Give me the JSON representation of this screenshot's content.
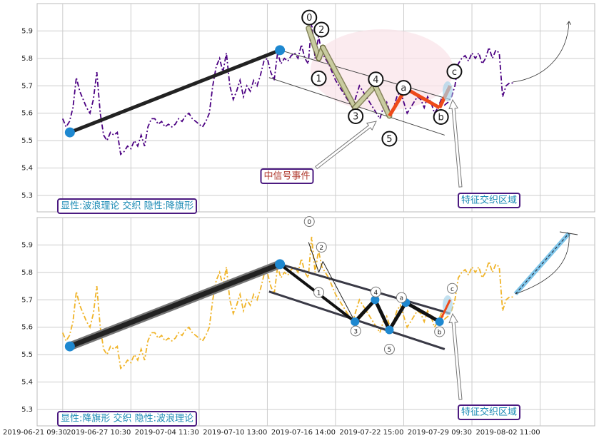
{
  "chart_data": [
    {
      "type": "line",
      "ylim": [
        5.24,
        6.0
      ],
      "yticks": [
        5.3,
        5.4,
        5.5,
        5.6,
        5.7,
        5.8,
        5.9
      ],
      "xlim": [
        -7.5,
        156
      ],
      "xticks": [
        0,
        20,
        40,
        60,
        80,
        100,
        120,
        140
      ],
      "xtick_labels": false,
      "grid": true,
      "series": [
        {
          "color": "#4b0082",
          "values": [
            5.58,
            5.55,
            5.57,
            5.62,
            5.73,
            5.68,
            5.65,
            5.62,
            5.6,
            5.65,
            5.75,
            5.6,
            5.52,
            5.5,
            5.53,
            5.52,
            5.53,
            5.45,
            5.46,
            5.48,
            5.47,
            5.5,
            5.48,
            5.52,
            5.48,
            5.55,
            5.58,
            5.58,
            5.56,
            5.57,
            5.55,
            5.56,
            5.55,
            5.56,
            5.58,
            5.57,
            5.59,
            5.6,
            5.58,
            5.57,
            5.56,
            5.55,
            5.57,
            5.6,
            5.7,
            5.77,
            5.8,
            5.75,
            5.82,
            5.7,
            5.65,
            5.68,
            5.72,
            5.66,
            5.7,
            5.68,
            5.72,
            5.7,
            5.74,
            5.79,
            5.8,
            5.75,
            5.72,
            5.82,
            5.78,
            5.8,
            5.79,
            5.81,
            5.82,
            5.8,
            5.85,
            5.8,
            5.78,
            5.93,
            5.8,
            5.88,
            5.82,
            5.8,
            5.78,
            5.75,
            5.72,
            5.7,
            5.68,
            5.66,
            5.64,
            5.62,
            5.66,
            5.7,
            5.68,
            5.66,
            5.64,
            5.62,
            5.6,
            5.58,
            5.62,
            5.64,
            5.6,
            5.62,
            5.66,
            5.68,
            5.64,
            5.6,
            5.62,
            5.64,
            5.66,
            5.65,
            5.62,
            5.66,
            5.64,
            5.6,
            5.62,
            5.65,
            5.63,
            5.64,
            5.66,
            5.7,
            5.78,
            5.8,
            5.81,
            5.79,
            5.82,
            5.8,
            5.82,
            5.78,
            5.8,
            5.84,
            5.8,
            5.83,
            5.82,
            5.66,
            5.7,
            5.71,
            5.71
          ]
        }
      ],
      "trend_line": {
        "x": [
          2.1,
          63.7
        ],
        "values": [
          5.53,
          5.83
        ]
      },
      "channel_upper": {
        "x": [
          63.7,
          113.6
        ],
        "values": [
          5.83,
          5.65
        ]
      },
      "channel_lower": {
        "x": [
          60.5,
          112
        ],
        "values": [
          5.73,
          5.52
        ]
      },
      "waves": {
        "labels": [
          "0",
          "1",
          "2",
          "3",
          "4",
          "5",
          "a",
          "b",
          "c"
        ],
        "x": [
          72.1,
          75.1,
          76.3,
          85.7,
          91.6,
          95.8,
          100.6,
          110.5,
          113.6
        ],
        "values": [
          5.91,
          5.8,
          5.84,
          5.62,
          5.7,
          5.59,
          5.69,
          5.62,
          5.7
        ]
      },
      "annotations": [
        "中信号事件",
        "特征交织区域",
        "显性:波浪理论 交织 隐性:降旗形"
      ]
    },
    {
      "type": "line",
      "ylim": [
        5.24,
        6.0
      ],
      "yticks": [
        5.3,
        5.4,
        5.5,
        5.6,
        5.7,
        5.8,
        5.9
      ],
      "xlim": [
        -7.5,
        156
      ],
      "xticks": [
        {
          "value": 0,
          "label": "2019-06-21 09:30"
        },
        {
          "value": 20,
          "label": "2019-06-27 10:30"
        },
        {
          "value": 40,
          "label": "2019-07-04 11:30"
        },
        {
          "value": 60,
          "label": "2019-07-10 13:00"
        },
        {
          "value": 80,
          "label": "2019-07-16 14:00"
        },
        {
          "value": 100,
          "label": "2019-07-22 15:00"
        },
        {
          "value": 120,
          "label": "2019-07-29 09:30"
        },
        {
          "value": 140,
          "label": "2019-08-02 11:00"
        }
      ],
      "grid": true,
      "series": [
        {
          "color": "#f0b429",
          "values": [
            5.58,
            5.55,
            5.57,
            5.62,
            5.73,
            5.68,
            5.65,
            5.62,
            5.6,
            5.65,
            5.75,
            5.6,
            5.52,
            5.5,
            5.53,
            5.52,
            5.53,
            5.45,
            5.46,
            5.48,
            5.47,
            5.5,
            5.48,
            5.52,
            5.48,
            5.55,
            5.58,
            5.58,
            5.56,
            5.57,
            5.55,
            5.56,
            5.55,
            5.56,
            5.58,
            5.57,
            5.59,
            5.6,
            5.58,
            5.57,
            5.56,
            5.55,
            5.57,
            5.6,
            5.7,
            5.77,
            5.8,
            5.75,
            5.82,
            5.7,
            5.65,
            5.68,
            5.72,
            5.66,
            5.7,
            5.68,
            5.72,
            5.7,
            5.74,
            5.79,
            5.8,
            5.75,
            5.72,
            5.82,
            5.78,
            5.8,
            5.79,
            5.81,
            5.82,
            5.8,
            5.85,
            5.8,
            5.78,
            5.93,
            5.8,
            5.88,
            5.82,
            5.8,
            5.78,
            5.75,
            5.72,
            5.7,
            5.68,
            5.66,
            5.64,
            5.62,
            5.66,
            5.7,
            5.68,
            5.66,
            5.64,
            5.62,
            5.6,
            5.58,
            5.62,
            5.64,
            5.6,
            5.62,
            5.66,
            5.68,
            5.64,
            5.6,
            5.62,
            5.64,
            5.66,
            5.65,
            5.62,
            5.66,
            5.64,
            5.6,
            5.62,
            5.65,
            5.63,
            5.64,
            5.66,
            5.7,
            5.78,
            5.8,
            5.81,
            5.79,
            5.82,
            5.8,
            5.82,
            5.78,
            5.8,
            5.84,
            5.8,
            5.83,
            5.82,
            5.66,
            5.7,
            5.71,
            5.71
          ]
        }
      ],
      "trend_line": {
        "x": [
          2.1,
          63.7
        ],
        "values": [
          5.53,
          5.83
        ]
      },
      "channel_upper": {
        "x": [
          63.7,
          113.6
        ],
        "values": [
          5.83,
          5.65
        ]
      },
      "channel_lower": {
        "x": [
          60.5,
          112
        ],
        "values": [
          5.73,
          5.52
        ]
      },
      "waves": {
        "labels": [
          "0",
          "1",
          "2",
          "3",
          "4",
          "5",
          "a",
          "b",
          "c"
        ],
        "x": [
          72.1,
          75.1,
          76.3,
          85.7,
          91.6,
          95.8,
          100.6,
          110.5,
          113.6
        ],
        "values": [
          5.91,
          5.8,
          5.84,
          5.62,
          5.7,
          5.59,
          5.69,
          5.62,
          5.7
        ]
      },
      "annotations": [
        "特征交织区域",
        "显性:降旗形 交织 隐性:波浪理论"
      ]
    }
  ]
}
